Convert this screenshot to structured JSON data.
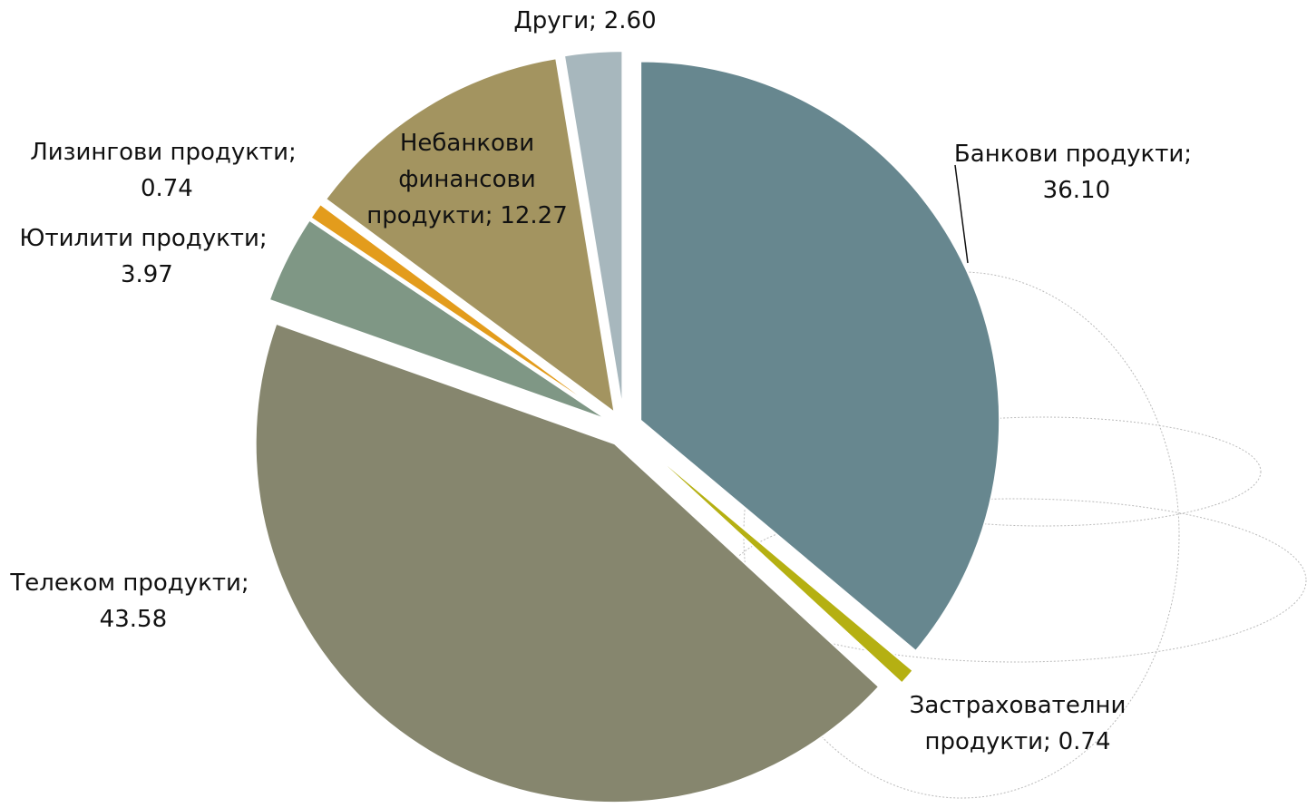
{
  "chart_data": {
    "type": "pie",
    "categories": [
      "Банкови продукти;",
      "Застрахователни продукти;",
      "Телеком продукти;",
      "Ютилити продукти;",
      "Лизингови продукти;",
      "Небанкови финансови продукти;",
      "Други;"
    ],
    "values": [
      36.1,
      0.74,
      43.58,
      3.97,
      0.74,
      12.27,
      2.6
    ],
    "value_labels": [
      "36.10",
      "0.74",
      "43.58",
      "3.97",
      "0.74",
      "12.27",
      "2.60"
    ],
    "colors": [
      "#67878f",
      "#b5b012",
      "#86866e",
      "#7f9785",
      "#e39c1c",
      "#a39460",
      "#a7b7bd"
    ]
  }
}
